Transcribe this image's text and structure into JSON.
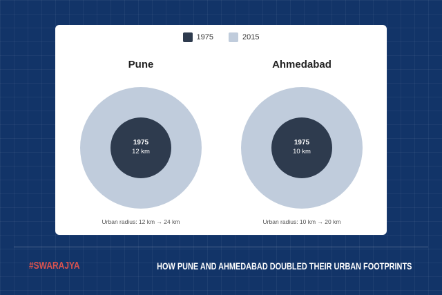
{
  "chart_data": {
    "type": "concentric-circles",
    "legend": [
      {
        "label": "1975",
        "color": "#2e3b4e"
      },
      {
        "label": "2015",
        "color": "#c0ccdc"
      }
    ],
    "legend_placement": "top-center",
    "panels": [
      {
        "title": "Pune",
        "inner_label": "1975",
        "inner_value": "12 km",
        "radius_1975_km": 12,
        "radius_2015_km": 24,
        "note": "Urban radius: 12 km → 24 km"
      },
      {
        "title": "Ahmedabad",
        "inner_label": "1975",
        "inner_value": "10 km",
        "radius_1975_km": 10,
        "radius_2015_km": 20,
        "note": "Urban radius: 10 km → 20 km"
      }
    ]
  },
  "footer": {
    "brand": "#SWARAJYA",
    "headline": "HOW PUNE AND AHMEDABAD DOUBLED THEIR URBAN FOOTPRINTS",
    "brand_color": "#d9534f"
  }
}
